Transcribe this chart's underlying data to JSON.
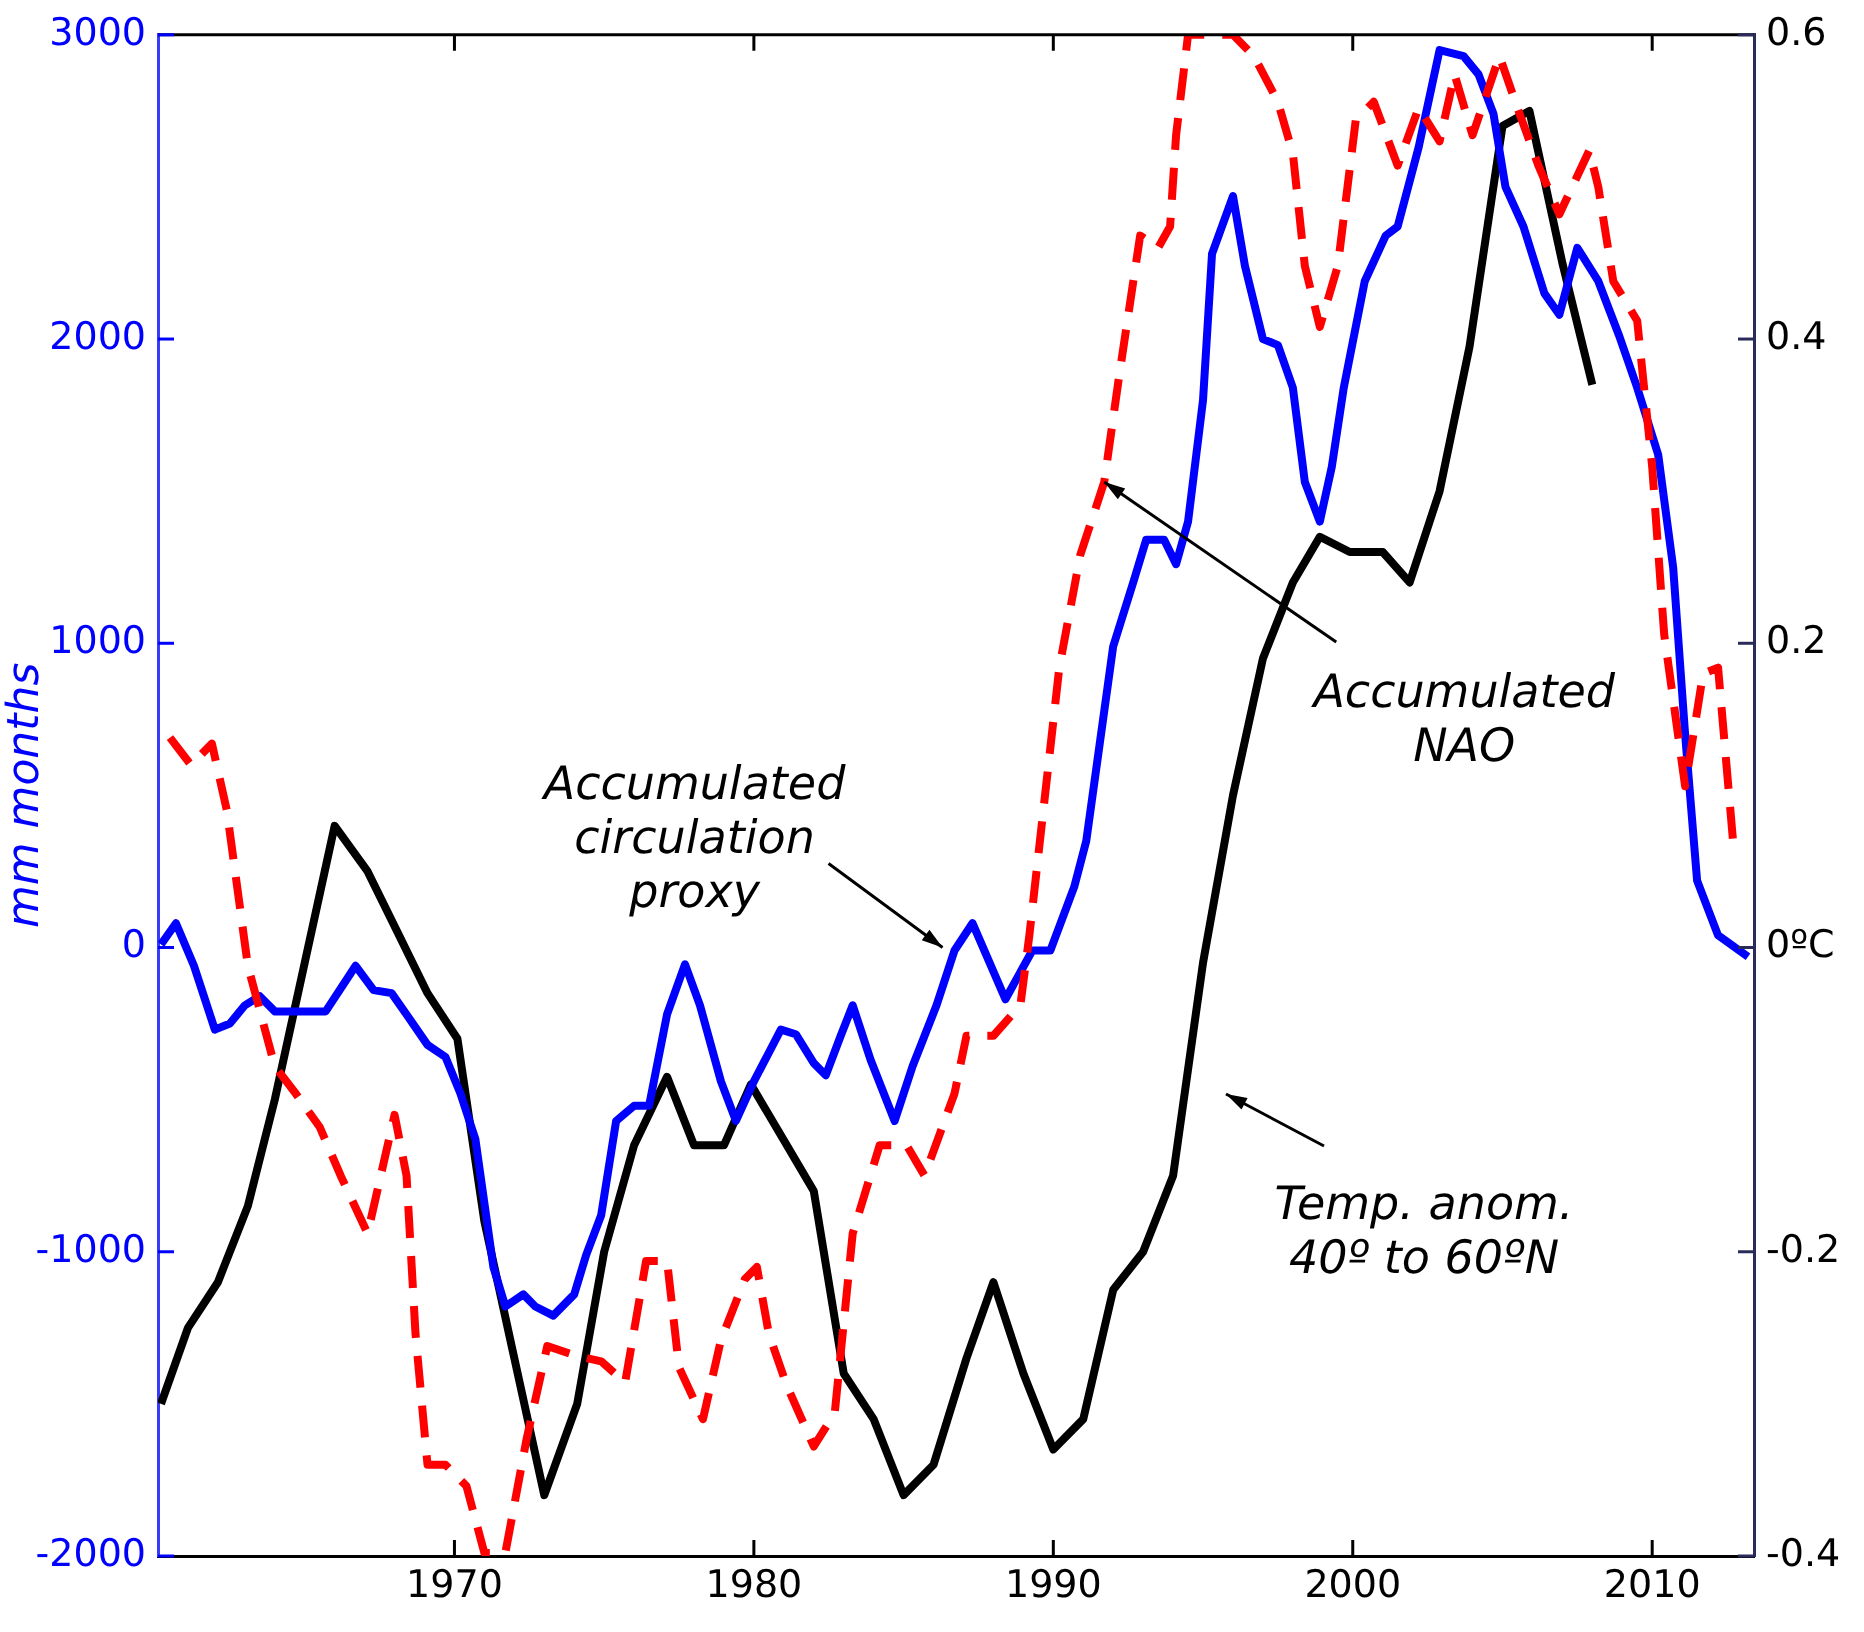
{
  "chart_data": {
    "type": "line",
    "ylabel": "mm months",
    "marker": "none",
    "grid": false,
    "legend": false,
    "xlim": [
      1960.1,
      2013.4
    ],
    "xticks": [
      1970,
      1980,
      1990,
      2000,
      2010
    ],
    "ylim": [
      -2000,
      3000
    ],
    "yticks": [
      -2000,
      -1000,
      0,
      1000,
      2000,
      3000
    ],
    "y2lim": [
      -0.4,
      0.6
    ],
    "y2ticks": [
      -0.4,
      -0.2,
      {
        "value": 0,
        "label": "0ºC"
      },
      0.2,
      0.4,
      0.6
    ],
    "series": [
      {
        "color": "#ff0000",
        "line_style": "dashed",
        "axis": "y",
        "x": [
          1960.5,
          1961.2,
          1961.9,
          1962.4,
          1963.1,
          1964.0,
          1964.7,
          1965.5,
          1966.2,
          1967.1,
          1967.7,
          1968.0,
          1968.4,
          1968.7,
          1969.1,
          1969.7,
          1970.4,
          1971.0,
          1971.7,
          1972.4,
          1973.1,
          1974.0,
          1974.9,
          1975.7,
          1976.4,
          1977.1,
          1977.5,
          1978.3,
          1978.9,
          1979.7,
          1980.1,
          1980.5,
          1981.1,
          1982.0,
          1982.7,
          1983.3,
          1984.2,
          1985.1,
          1985.7,
          1986.7,
          1987.1,
          1988.0,
          1988.9,
          1989.2,
          1989.7,
          1990.2,
          1990.9,
          1991.7,
          1992.2,
          1992.9,
          1993.5,
          1993.9,
          1994.1,
          1994.5,
          1996.0,
          1996.7,
          1997.5,
          1998.0,
          1998.4,
          1998.9,
          1999.5,
          2000.1,
          2000.7,
          2001.5,
          2002.2,
          2002.9,
          2003.4,
          2004.0,
          2004.9,
          2005.5,
          2006.2,
          2006.9,
          2007.9,
          2008.2,
          2008.7,
          2009.5,
          2010.0,
          2010.4,
          2011.1,
          2011.7,
          2012.2,
          2012.7
        ],
        "values": [
          690,
          600,
          670,
          450,
          -60,
          -390,
          -480,
          -590,
          -750,
          -940,
          -680,
          -550,
          -750,
          -1270,
          -1700,
          -1700,
          -1770,
          -1990,
          -1990,
          -1620,
          -1310,
          -1340,
          -1360,
          -1430,
          -1030,
          -1030,
          -1380,
          -1550,
          -1290,
          -1090,
          -1050,
          -1270,
          -1440,
          -1640,
          -1530,
          -940,
          -650,
          -650,
          -750,
          -480,
          -290,
          -290,
          -190,
          40,
          480,
          920,
          1290,
          1530,
          1880,
          2340,
          2300,
          2370,
          2670,
          3000,
          3000,
          2930,
          2780,
          2610,
          2240,
          2040,
          2240,
          2720,
          2780,
          2570,
          2760,
          2650,
          2870,
          2670,
          2930,
          2760,
          2570,
          2410,
          2620,
          2500,
          2190,
          2060,
          1580,
          1030,
          530,
          900,
          920,
          350
        ]
      },
      {
        "color": "#0000ff",
        "line_style": "solid",
        "axis": "y",
        "x": [
          1960.2,
          1960.7,
          1961.3,
          1962.0,
          1962.5,
          1963.0,
          1963.5,
          1964.0,
          1965.0,
          1965.7,
          1966.7,
          1967.3,
          1967.9,
          1968.4,
          1969.1,
          1969.7,
          1970.2,
          1970.7,
          1971.3,
          1971.7,
          1972.3,
          1972.7,
          1973.3,
          1974.0,
          1974.4,
          1974.9,
          1975.4,
          1976.0,
          1976.5,
          1977.1,
          1977.7,
          1978.2,
          1978.9,
          1979.4,
          1980.0,
          1980.9,
          1981.4,
          1982.0,
          1982.4,
          1982.9,
          1983.3,
          1983.9,
          1984.7,
          1985.3,
          1986.1,
          1986.7,
          1987.3,
          1988.4,
          1989.3,
          1989.9,
          1990.7,
          1991.1,
          1992.0,
          1992.7,
          1993.1,
          1993.7,
          1994.1,
          1994.5,
          1995.0,
          1995.3,
          1996.0,
          1996.4,
          1997.0,
          1997.5,
          1998.0,
          1998.4,
          1998.9,
          1999.3,
          1999.7,
          2000.4,
          2001.1,
          2001.5,
          2002.2,
          2002.9,
          2003.7,
          2004.2,
          2004.7,
          2005.1,
          2005.7,
          2006.4,
          2006.9,
          2007.5,
          2008.2,
          2008.9,
          2009.5,
          2010.2,
          2010.7,
          2011.1,
          2011.5,
          2012.2,
          2013.2
        ],
        "values": [
          10,
          80,
          -60,
          -270,
          -250,
          -190,
          -160,
          -210,
          -210,
          -210,
          -60,
          -140,
          -150,
          -220,
          -320,
          -360,
          -480,
          -630,
          -1050,
          -1180,
          -1140,
          -1180,
          -1210,
          -1140,
          -1010,
          -880,
          -570,
          -520,
          -520,
          -220,
          -55,
          -190,
          -440,
          -570,
          -440,
          -270,
          -285,
          -380,
          -420,
          -290,
          -190,
          -370,
          -570,
          -390,
          -190,
          -10,
          80,
          -170,
          -10,
          -10,
          200,
          350,
          990,
          1210,
          1340,
          1340,
          1260,
          1400,
          1800,
          2280,
          2470,
          2240,
          2000,
          1980,
          1840,
          1530,
          1400,
          1580,
          1840,
          2190,
          2340,
          2370,
          2630,
          2950,
          2930,
          2870,
          2740,
          2500,
          2370,
          2150,
          2080,
          2300,
          2190,
          2010,
          1840,
          1620,
          1250,
          700,
          220,
          40,
          -30
        ]
      },
      {
        "color": "#000000",
        "line_style": "solid",
        "axis": "y2",
        "x": [
          1960.2,
          1961.1,
          1962.1,
          1963.1,
          1964.0,
          1965.0,
          1966.0,
          1967.1,
          1968.1,
          1969.1,
          1970.1,
          1971.0,
          1972.0,
          1973.0,
          1974.1,
          1975.0,
          1976.0,
          1977.1,
          1978.0,
          1979.0,
          1979.9,
          1981.1,
          1982.0,
          1983.0,
          1984.0,
          1985.0,
          1986.0,
          1987.1,
          1988.0,
          1989.0,
          1990.0,
          1991.0,
          1992.0,
          1993.0,
          1994.0,
          1995.0,
          1996.0,
          1997.0,
          1998.0,
          1998.9,
          1999.9,
          2001.0,
          2001.9,
          2002.9,
          2003.9,
          2005.0,
          2005.9,
          2007.0,
          2008.0
        ],
        "values": [
          -0.3,
          -0.25,
          -0.22,
          -0.17,
          -0.1,
          -0.01,
          0.08,
          0.05,
          0.01,
          -0.03,
          -0.06,
          -0.18,
          -0.27,
          -0.36,
          -0.3,
          -0.2,
          -0.13,
          -0.085,
          -0.13,
          -0.13,
          -0.09,
          -0.13,
          -0.16,
          -0.28,
          -0.31,
          -0.36,
          -0.34,
          -0.27,
          -0.22,
          -0.28,
          -0.33,
          -0.31,
          -0.225,
          -0.2,
          -0.15,
          -0.01,
          0.1,
          0.19,
          0.24,
          0.27,
          0.26,
          0.26,
          0.24,
          0.3,
          0.395,
          0.54,
          0.55,
          0.45,
          0.37
        ]
      }
    ],
    "annotations": [
      {
        "text": "Accumulated circulation proxy",
        "x": 1986.3,
        "y": 0
      },
      {
        "text": "Accumulated NAO",
        "x": 1991.7,
        "y": 1530
      },
      "Temp. anom. 40º to 60ºN"
    ]
  }
}
